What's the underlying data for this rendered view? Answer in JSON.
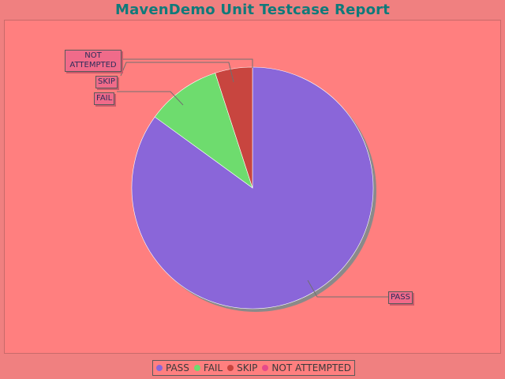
{
  "header": {
    "title": "MavenDemo Unit Testcase Report"
  },
  "chart_data": {
    "type": "pie",
    "title": "MavenDemo Unit Testcase Report",
    "slices": [
      {
        "name": "PASS",
        "value": 85,
        "color": "#8a66d9"
      },
      {
        "name": "FAIL",
        "value": 10,
        "color": "#6edc6e"
      },
      {
        "name": "SKIP",
        "value": 5,
        "color": "#c8453f"
      },
      {
        "name": "NOT ATTEMPTED",
        "value": 0,
        "color": "#e54a8a"
      }
    ],
    "legend_position": "bottom",
    "labels": {
      "pass": "PASS",
      "fail": "FAIL",
      "skip": "SKIP",
      "not_attempted_line1": "NOT",
      "not_attempted_line2": "ATTEMPTED"
    }
  },
  "legend": {
    "items": [
      {
        "label": "PASS",
        "color": "#8a66d9"
      },
      {
        "label": "FAIL",
        "color": "#6edc6e"
      },
      {
        "label": "SKIP",
        "color": "#c8453f"
      },
      {
        "label": "NOT ATTEMPTED",
        "color": "#e54a8a"
      }
    ]
  }
}
